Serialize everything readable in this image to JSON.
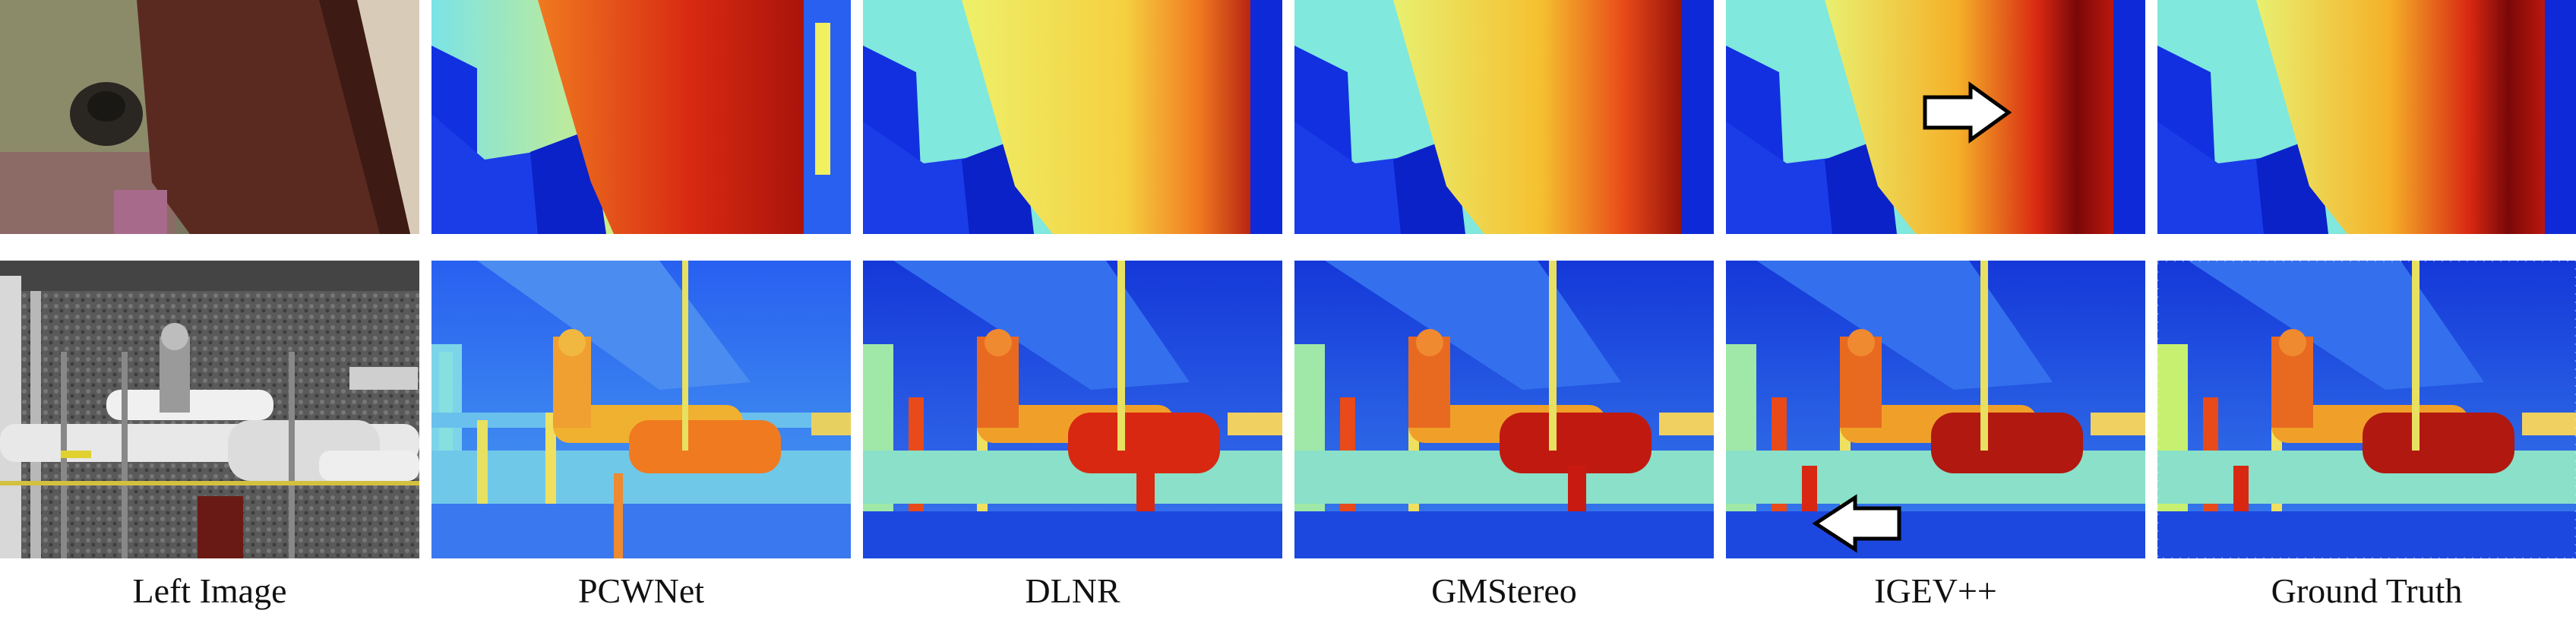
{
  "figure": {
    "columns": [
      {
        "id": "left-image",
        "label": "Left Image"
      },
      {
        "id": "pcwnet",
        "label": "PCWNet"
      },
      {
        "id": "dlnr",
        "label": "DLNR"
      },
      {
        "id": "gmstereo",
        "label": "GMStereo"
      },
      {
        "id": "igevpp",
        "label": "IGEV++"
      },
      {
        "id": "ground-truth",
        "label": "Ground Truth"
      }
    ],
    "rows": [
      "top-scene",
      "bottom-scene"
    ],
    "highlight_arrows": [
      {
        "row": "top-scene",
        "column": "igevpp",
        "direction": "right"
      },
      {
        "row": "bottom-scene",
        "column": "igevpp",
        "direction": "left"
      }
    ],
    "colors": {
      "deep_blue": "#0a1fd6",
      "light_blue": "#4aa8f0",
      "cyan": "#7ee8e0",
      "yellow": "#f0f060",
      "orange": "#f07a20",
      "red": "#c81a10",
      "dark_red": "#7a0808"
    }
  }
}
